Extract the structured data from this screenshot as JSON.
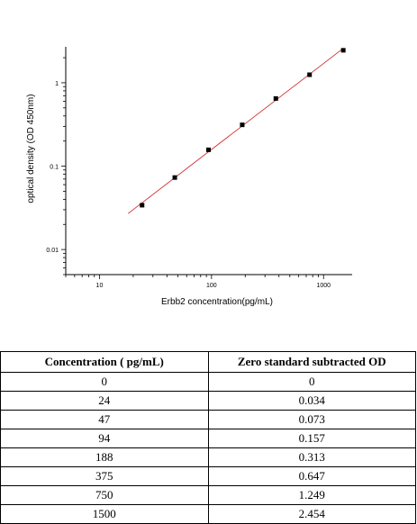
{
  "chart_data": {
    "type": "scatter",
    "xlabel": "Erbb2  concentration(pg/mL)",
    "ylabel": "optical density (OD 450nm)",
    "x_scale": "log",
    "y_scale": "log",
    "xlim": [
      5,
      1800
    ],
    "ylim": [
      0.005,
      2.7
    ],
    "x_ticks": [
      10,
      100,
      1000
    ],
    "x_tick_labels": [
      "10",
      "100",
      "1000"
    ],
    "y_ticks": [
      0.01,
      0.1,
      1
    ],
    "y_tick_labels": [
      "0.01",
      "0.1",
      "1"
    ],
    "grid": false,
    "series": [
      {
        "x": [
          24,
          47,
          94,
          188,
          375,
          750,
          1500
        ],
        "y": [
          0.034,
          0.073,
          0.157,
          0.313,
          0.647,
          1.249,
          2.454
        ]
      }
    ],
    "fit_line": {
      "x": [
        18,
        1500
      ],
      "color": "#cc2222"
    },
    "marker_color": "#000000"
  },
  "table": {
    "headers": [
      "Concentration ( pg/mL)",
      "Zero standard subtracted OD"
    ],
    "rows": [
      [
        "0",
        "0"
      ],
      [
        "24",
        "0.034"
      ],
      [
        "47",
        "0.073"
      ],
      [
        "94",
        "0.157"
      ],
      [
        "188",
        "0.313"
      ],
      [
        "375",
        "0.647"
      ],
      [
        "750",
        "1.249"
      ],
      [
        "1500",
        "2.454"
      ]
    ]
  }
}
